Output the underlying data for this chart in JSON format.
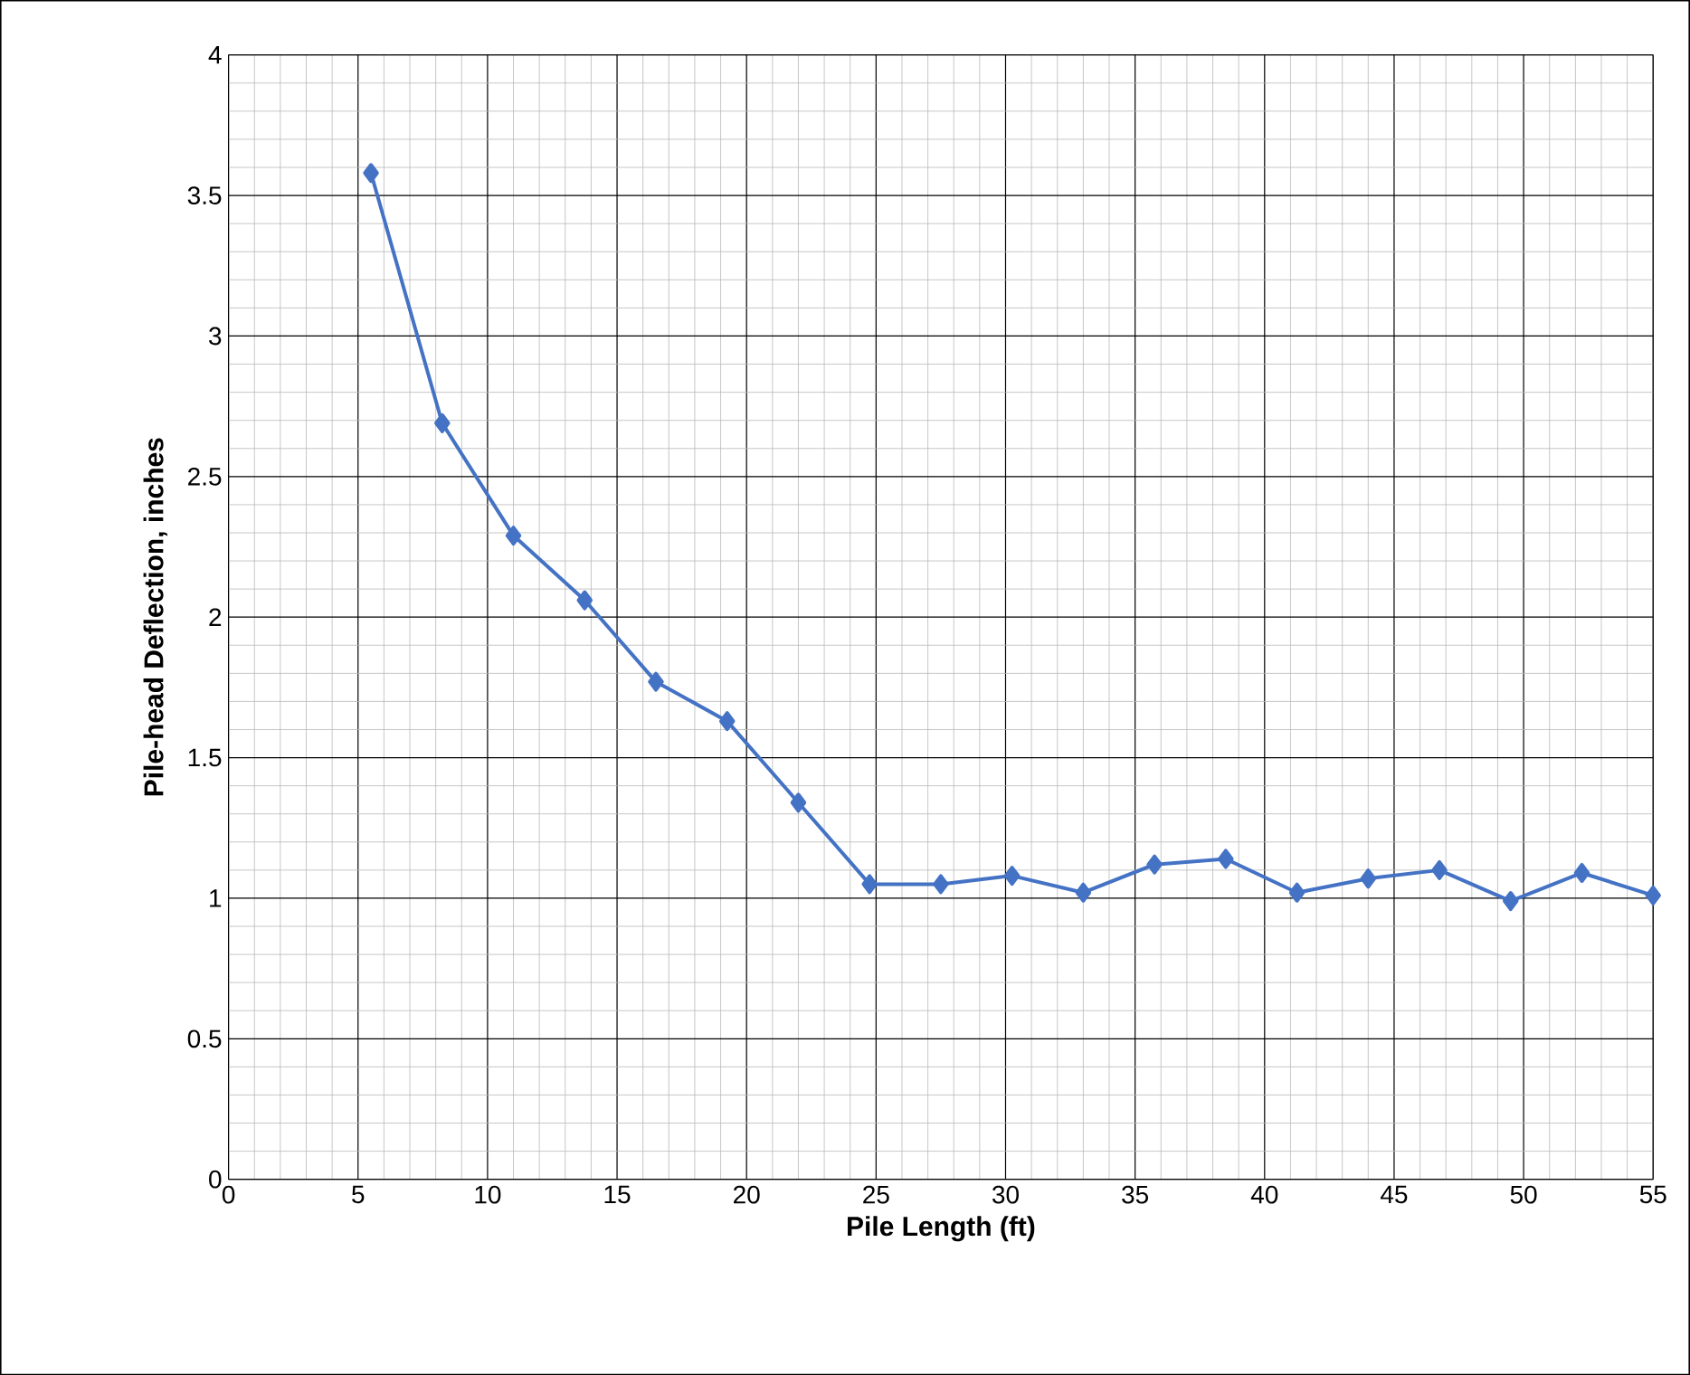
{
  "chart_data": {
    "type": "line",
    "xlabel": "Pile Length (ft)",
    "ylabel": "Pile-head Deflection, inches",
    "x": [
      5.5,
      8.25,
      11,
      13.75,
      16.5,
      19.25,
      22,
      24.75,
      27.5,
      30.25,
      33,
      35.75,
      38.5,
      41.25,
      44,
      46.75,
      49.5,
      52.25,
      55
    ],
    "series": [
      {
        "color": "#4472c4",
        "values": [
          3.58,
          2.69,
          2.29,
          2.06,
          1.77,
          1.63,
          1.34,
          1.05,
          1.05,
          1.08,
          1.02,
          1.12,
          1.14,
          1.02,
          1.07,
          1.1,
          0.99,
          1.09,
          1.01
        ]
      }
    ],
    "xlim": [
      0,
      55
    ],
    "ylim": [
      0,
      4
    ],
    "xticks": [
      0,
      5,
      10,
      15,
      20,
      25,
      30,
      35,
      40,
      45,
      50,
      55
    ],
    "yticks": [
      0,
      0.5,
      1,
      1.5,
      2,
      2.5,
      3,
      3.5,
      4
    ],
    "grid": true,
    "marker": "diamond",
    "line_style": "solid"
  }
}
